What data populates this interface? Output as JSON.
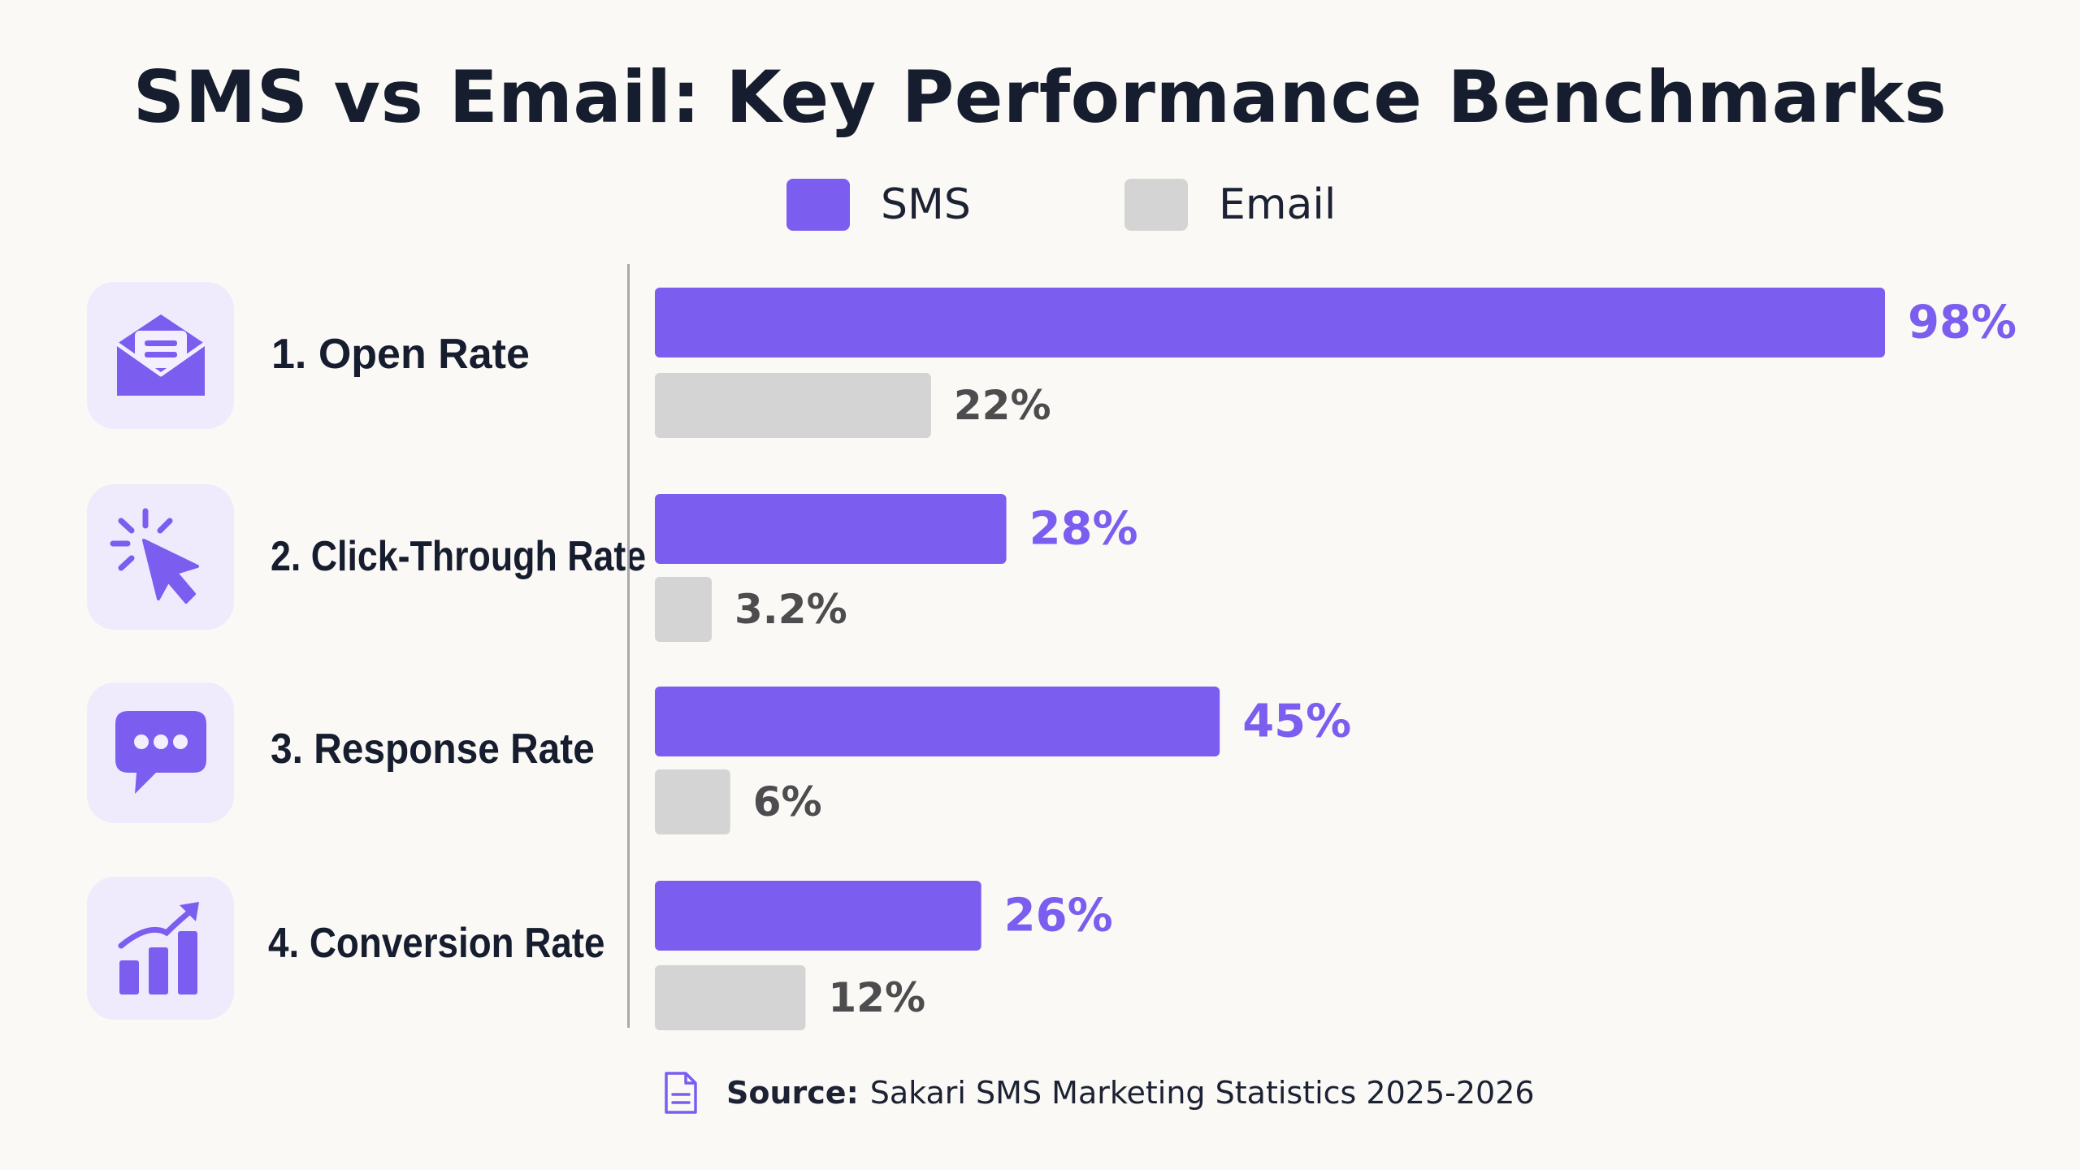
{
  "chart_data": {
    "type": "bar",
    "orientation": "horizontal",
    "title": "SMS vs Email: Key Performance Benchmarks",
    "categories": [
      "1. Open Rate",
      "2. Click-Through Rate",
      "3. Response Rate",
      "4. Conversion Rate"
    ],
    "series": [
      {
        "name": "SMS",
        "values": [
          98,
          28,
          45,
          26
        ],
        "labels": [
          "98%",
          "28%",
          "45%",
          "26%"
        ],
        "color": "#7b5ef0"
      },
      {
        "name": "Email",
        "values": [
          22,
          3.2,
          6,
          12
        ],
        "labels": [
          "22%",
          "3.2%",
          "6%",
          "12%"
        ],
        "color": "#d4d4d4"
      }
    ],
    "xlim": [
      0,
      100
    ],
    "legend_position": "top-center",
    "grid": false
  },
  "icons": [
    "envelope-icon",
    "cursor-click-icon",
    "chat-bubble-icon",
    "growth-chart-icon"
  ],
  "colors": {
    "accent": "#7b5ef0",
    "icon_tile": "#efeafc",
    "email": "#d4d4d4",
    "background": "#fbf9f5"
  },
  "source": {
    "label": "Source:",
    "text": "Sakari SMS Marketing Statistics 2025-2026",
    "icon": "document-icon"
  }
}
